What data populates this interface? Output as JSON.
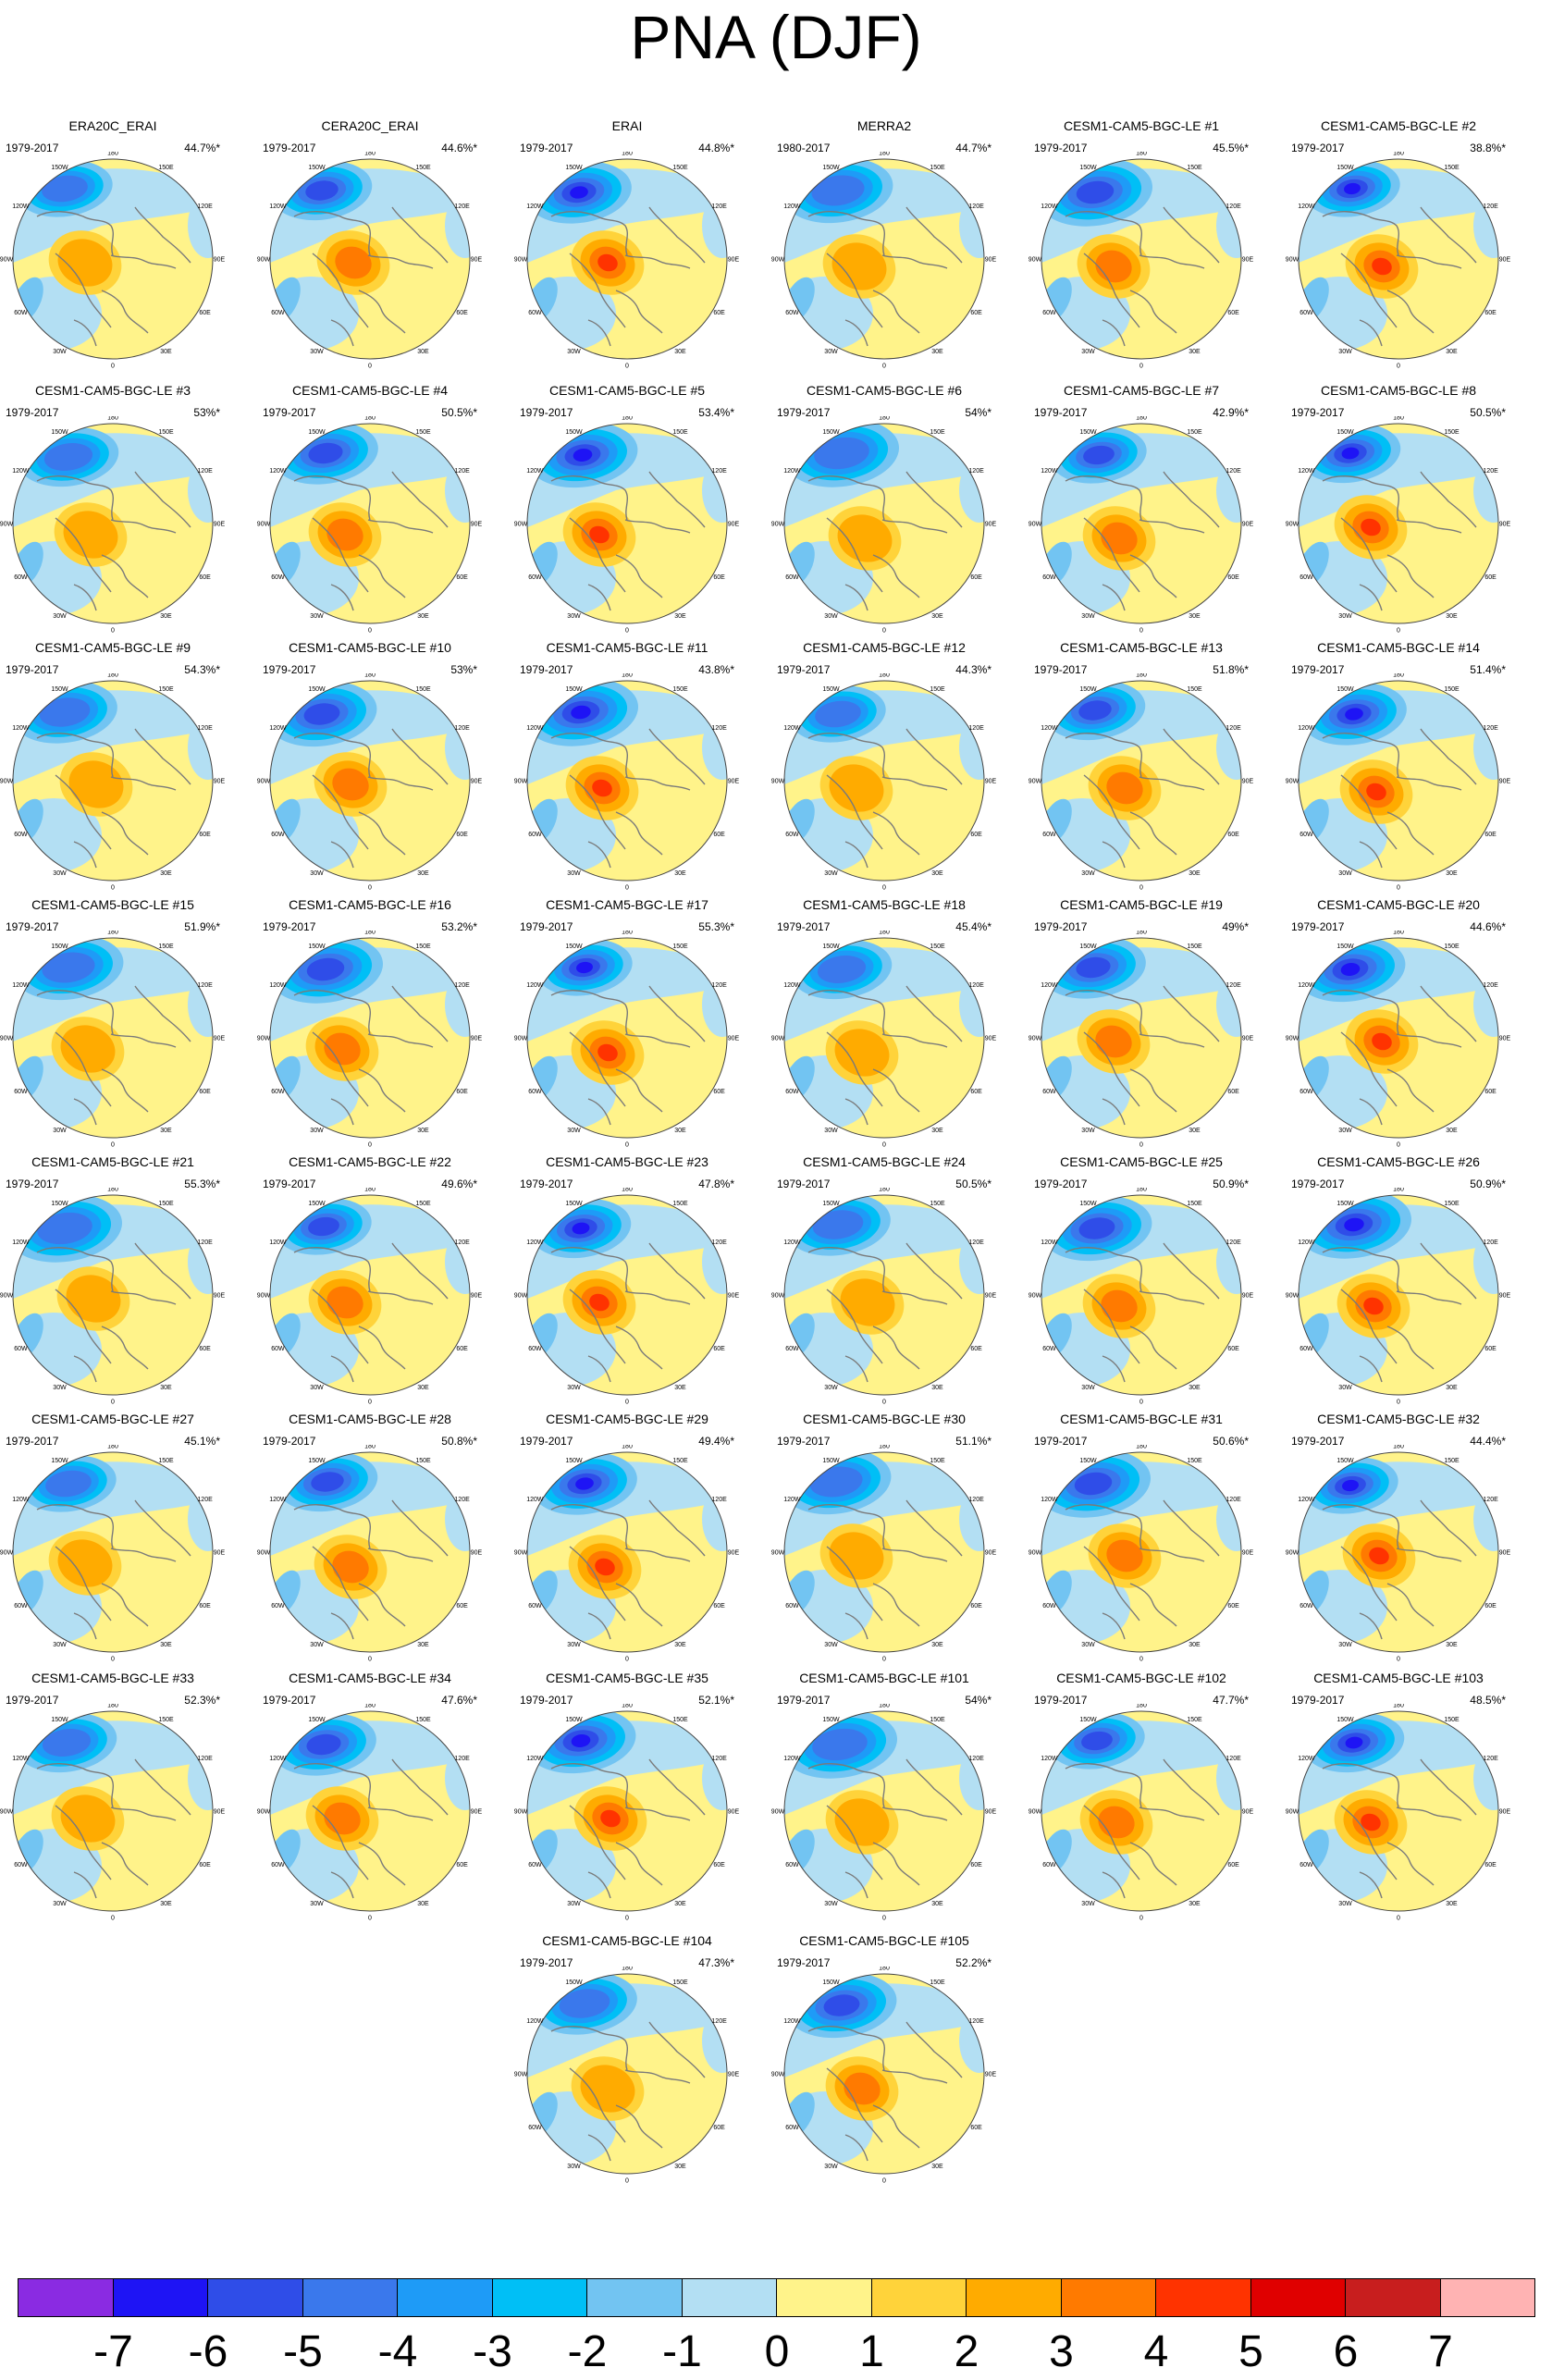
{
  "title": "PNA (DJF)",
  "lon_labels": [
    "180",
    "150W",
    "120W",
    "90W",
    "60W",
    "30W",
    "0",
    "30E",
    "60E",
    "90E",
    "120E",
    "150E"
  ],
  "panels": [
    {
      "title": "ERA20C_ERAI",
      "period": "1979-2017",
      "pct": "44.7%*"
    },
    {
      "title": "CERA20C_ERAI",
      "period": "1979-2017",
      "pct": "44.6%*"
    },
    {
      "title": "ERAI",
      "period": "1979-2017",
      "pct": "44.8%*"
    },
    {
      "title": "MERRA2",
      "period": "1980-2017",
      "pct": "44.7%*"
    },
    {
      "title": "CESM1-CAM5-BGC-LE #1",
      "period": "1979-2017",
      "pct": "45.5%*"
    },
    {
      "title": "CESM1-CAM5-BGC-LE #2",
      "period": "1979-2017",
      "pct": "38.8%*"
    },
    {
      "title": "CESM1-CAM5-BGC-LE #3",
      "period": "1979-2017",
      "pct": "53%*"
    },
    {
      "title": "CESM1-CAM5-BGC-LE #4",
      "period": "1979-2017",
      "pct": "50.5%*"
    },
    {
      "title": "CESM1-CAM5-BGC-LE #5",
      "period": "1979-2017",
      "pct": "53.4%*"
    },
    {
      "title": "CESM1-CAM5-BGC-LE #6",
      "period": "1979-2017",
      "pct": "54%*"
    },
    {
      "title": "CESM1-CAM5-BGC-LE #7",
      "period": "1979-2017",
      "pct": "42.9%*"
    },
    {
      "title": "CESM1-CAM5-BGC-LE #8",
      "period": "1979-2017",
      "pct": "50.5%*"
    },
    {
      "title": "CESM1-CAM5-BGC-LE #9",
      "period": "1979-2017",
      "pct": "54.3%*"
    },
    {
      "title": "CESM1-CAM5-BGC-LE #10",
      "period": "1979-2017",
      "pct": "53%*"
    },
    {
      "title": "CESM1-CAM5-BGC-LE #11",
      "period": "1979-2017",
      "pct": "43.8%*"
    },
    {
      "title": "CESM1-CAM5-BGC-LE #12",
      "period": "1979-2017",
      "pct": "44.3%*"
    },
    {
      "title": "CESM1-CAM5-BGC-LE #13",
      "period": "1979-2017",
      "pct": "51.8%*"
    },
    {
      "title": "CESM1-CAM5-BGC-LE #14",
      "period": "1979-2017",
      "pct": "51.4%*"
    },
    {
      "title": "CESM1-CAM5-BGC-LE #15",
      "period": "1979-2017",
      "pct": "51.9%*"
    },
    {
      "title": "CESM1-CAM5-BGC-LE #16",
      "period": "1979-2017",
      "pct": "53.2%*"
    },
    {
      "title": "CESM1-CAM5-BGC-LE #17",
      "period": "1979-2017",
      "pct": "55.3%*"
    },
    {
      "title": "CESM1-CAM5-BGC-LE #18",
      "period": "1979-2017",
      "pct": "45.4%*"
    },
    {
      "title": "CESM1-CAM5-BGC-LE #19",
      "period": "1979-2017",
      "pct": "49%*"
    },
    {
      "title": "CESM1-CAM5-BGC-LE #20",
      "period": "1979-2017",
      "pct": "44.6%*"
    },
    {
      "title": "CESM1-CAM5-BGC-LE #21",
      "period": "1979-2017",
      "pct": "55.3%*"
    },
    {
      "title": "CESM1-CAM5-BGC-LE #22",
      "period": "1979-2017",
      "pct": "49.6%*"
    },
    {
      "title": "CESM1-CAM5-BGC-LE #23",
      "period": "1979-2017",
      "pct": "47.8%*"
    },
    {
      "title": "CESM1-CAM5-BGC-LE #24",
      "period": "1979-2017",
      "pct": "50.5%*"
    },
    {
      "title": "CESM1-CAM5-BGC-LE #25",
      "period": "1979-2017",
      "pct": "50.9%*"
    },
    {
      "title": "CESM1-CAM5-BGC-LE #26",
      "period": "1979-2017",
      "pct": "50.9%*"
    },
    {
      "title": "CESM1-CAM5-BGC-LE #27",
      "period": "1979-2017",
      "pct": "45.1%*"
    },
    {
      "title": "CESM1-CAM5-BGC-LE #28",
      "period": "1979-2017",
      "pct": "50.8%*"
    },
    {
      "title": "CESM1-CAM5-BGC-LE #29",
      "period": "1979-2017",
      "pct": "49.4%*"
    },
    {
      "title": "CESM1-CAM5-BGC-LE #30",
      "period": "1979-2017",
      "pct": "51.1%*"
    },
    {
      "title": "CESM1-CAM5-BGC-LE #31",
      "period": "1979-2017",
      "pct": "50.6%*"
    },
    {
      "title": "CESM1-CAM5-BGC-LE #32",
      "period": "1979-2017",
      "pct": "44.4%*"
    },
    {
      "title": "CESM1-CAM5-BGC-LE #33",
      "period": "1979-2017",
      "pct": "52.3%*"
    },
    {
      "title": "CESM1-CAM5-BGC-LE #34",
      "period": "1979-2017",
      "pct": "47.6%*"
    },
    {
      "title": "CESM1-CAM5-BGC-LE #35",
      "period": "1979-2017",
      "pct": "52.1%*"
    },
    {
      "title": "CESM1-CAM5-BGC-LE #101",
      "period": "1979-2017",
      "pct": "54%*"
    },
    {
      "title": "CESM1-CAM5-BGC-LE #102",
      "period": "1979-2017",
      "pct": "47.7%*"
    },
    {
      "title": "CESM1-CAM5-BGC-LE #103",
      "period": "1979-2017",
      "pct": "48.5%*"
    },
    {
      "title": "CESM1-CAM5-BGC-LE #104",
      "period": "1979-2017",
      "pct": "47.3%*"
    },
    {
      "title": "CESM1-CAM5-BGC-LE #105",
      "period": "1979-2017",
      "pct": "52.2%*"
    }
  ],
  "colorbar": {
    "colors": [
      "#8a2be2",
      "#1e14f5",
      "#2f4de8",
      "#3a78ec",
      "#1e9bf7",
      "#00bff6",
      "#72c4f2",
      "#b3dff3",
      "#fff38a",
      "#ffd33a",
      "#ffab00",
      "#ff7a00",
      "#ff3300",
      "#e00000",
      "#c81e1e",
      "#ffb3b3"
    ],
    "labels": [
      "-7",
      "-6",
      "-5",
      "-4",
      "-3",
      "-2",
      "-1",
      "0",
      "1",
      "2",
      "3",
      "4",
      "5",
      "6",
      "7"
    ]
  }
}
